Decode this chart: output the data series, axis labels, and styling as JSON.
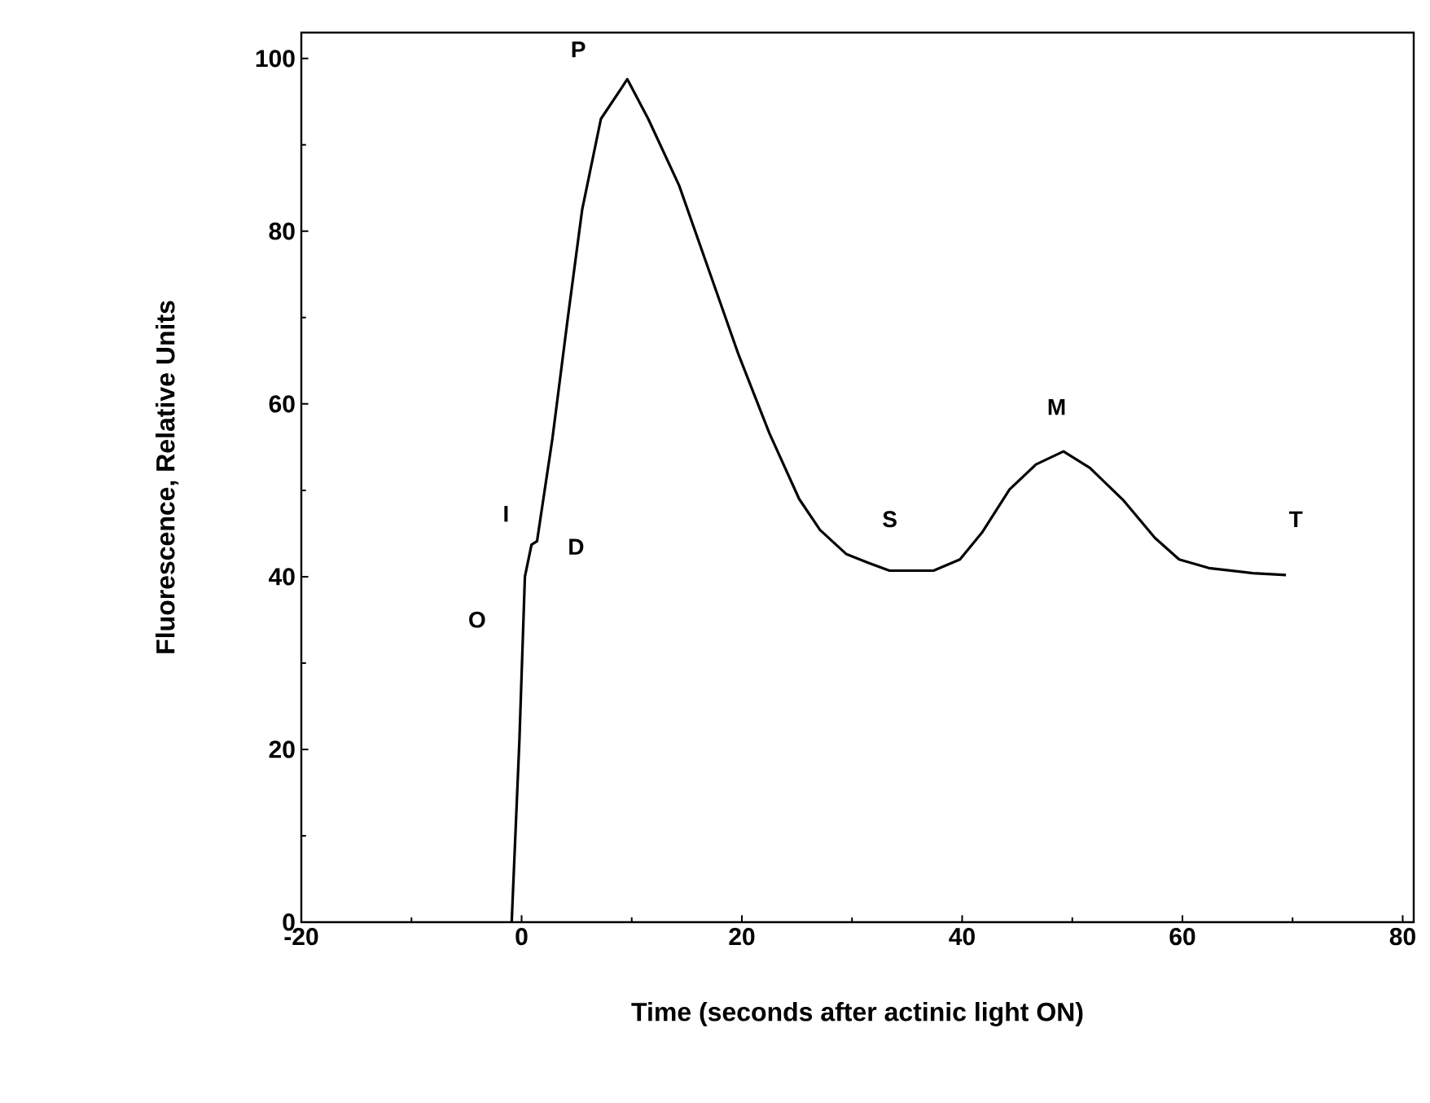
{
  "chart_data": {
    "type": "line",
    "xlabel": "Time (seconds after actinic light ON)",
    "ylabel": "Fluorescence,  Relative  Units",
    "x": [
      -0.9,
      -0.2,
      0.3,
      0.9,
      1.4,
      2.8,
      4.2,
      5.5,
      7.2,
      9.6,
      11.5,
      14.3,
      17.0,
      19.7,
      22.5,
      25.2,
      27.1,
      29.5,
      31.5,
      33.4,
      37.4,
      39.8,
      41.8,
      44.3,
      46.7,
      49.2,
      51.6,
      54.6,
      57.5,
      59.7,
      62.4,
      66.4,
      69.4
    ],
    "values": [
      0,
      21,
      40,
      43.7,
      44.1,
      56,
      70,
      82.5,
      93,
      97.6,
      93,
      85.3,
      75.5,
      65.7,
      56.6,
      49,
      45.4,
      42.6,
      41.6,
      40.7,
      40.7,
      42,
      45.1,
      50.1,
      53,
      54.5,
      52.6,
      48.9,
      44.5,
      42,
      41,
      40.4,
      40.2
    ],
    "color": "#000000",
    "xlim": [
      -20,
      81
    ],
    "ylim": [
      0,
      103
    ],
    "xticks": [
      -20,
      0,
      20,
      40,
      60,
      80
    ],
    "yticks": [
      0,
      20,
      40,
      60,
      80,
      100
    ],
    "annotations": [
      "O",
      "I",
      "D",
      "P",
      "S",
      "M",
      "T"
    ]
  }
}
